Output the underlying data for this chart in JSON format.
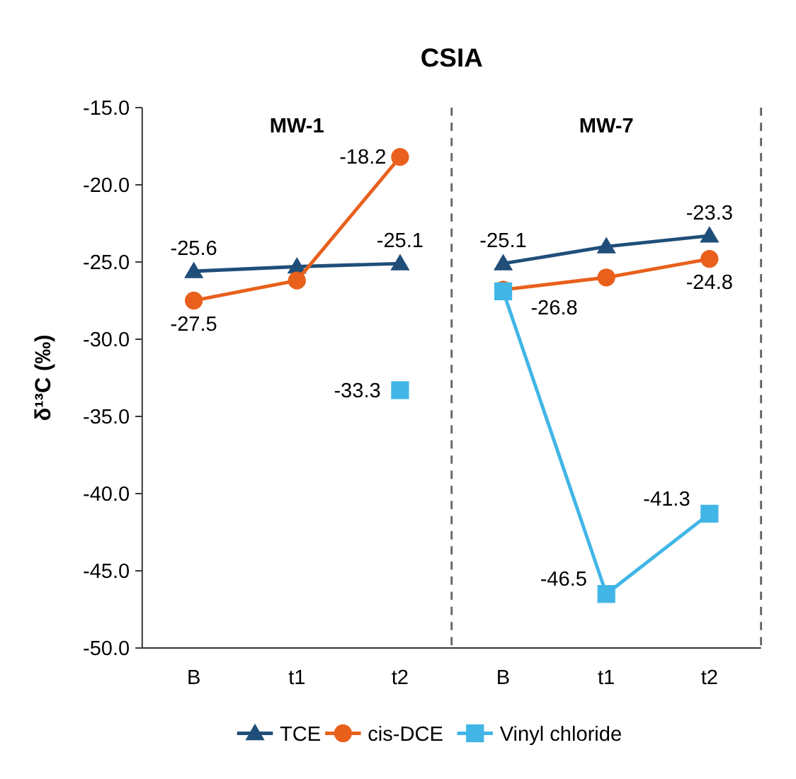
{
  "chart_data": [
    {
      "type": "line",
      "title": "CSIA",
      "subtitle": "MW-1",
      "ylabel": "δ¹³C (‰)",
      "categories": [
        "B",
        "t1",
        "t2"
      ],
      "ylim": [
        -50,
        -15
      ],
      "yticks": [
        {
          "value": -50,
          "label": "-50.0"
        },
        {
          "value": -45,
          "label": "-45.0"
        },
        {
          "value": -40,
          "label": "-40.0"
        },
        {
          "value": -35,
          "label": "-35.0"
        },
        {
          "value": -30,
          "label": "-30.0"
        },
        {
          "value": -25,
          "label": "-25.0"
        },
        {
          "value": -20,
          "label": "-20.0"
        },
        {
          "value": -15,
          "label": "-15.0"
        }
      ],
      "legend": "bottom",
      "grid": false,
      "series": [
        {
          "name": "TCE",
          "color": "#1f4e79",
          "marker": "triangle",
          "values": [
            -25.6,
            -25.3,
            -25.1
          ],
          "value_labels": [
            "-25.6",
            null,
            "-25.1"
          ]
        },
        {
          "name": "cis-DCE",
          "color": "#e8601c",
          "marker": "circle",
          "values": [
            -27.5,
            -26.2,
            -18.2
          ],
          "value_labels": [
            "-27.5",
            null,
            "-18.2"
          ]
        },
        {
          "name": "Vinyl chloride",
          "color": "#41b6e6",
          "marker": "square",
          "values": [
            null,
            null,
            -33.3
          ],
          "value_labels": [
            null,
            null,
            "-33.3"
          ]
        }
      ]
    },
    {
      "type": "line",
      "subtitle": "MW-7",
      "categories": [
        "B",
        "t1",
        "t2"
      ],
      "ylim": [
        -50,
        -15
      ],
      "tick_labels": "x",
      "grid": false,
      "series": [
        {
          "name": "TCE",
          "color": "#1f4e79",
          "marker": "triangle",
          "values": [
            -25.1,
            -24.0,
            -23.3
          ],
          "value_labels": [
            "-25.1",
            null,
            "-23.3"
          ]
        },
        {
          "name": "cis-DCE",
          "color": "#e8601c",
          "marker": "circle",
          "values": [
            -26.8,
            -26.0,
            -24.8
          ],
          "value_labels": [
            "-26.8",
            null,
            "-24.8"
          ]
        },
        {
          "name": "Vinyl chloride",
          "color": "#41b6e6",
          "marker": "square",
          "values": [
            -26.9,
            -46.5,
            -41.3
          ],
          "value_labels": [
            null,
            "-46.5",
            "-41.3"
          ]
        }
      ]
    }
  ]
}
